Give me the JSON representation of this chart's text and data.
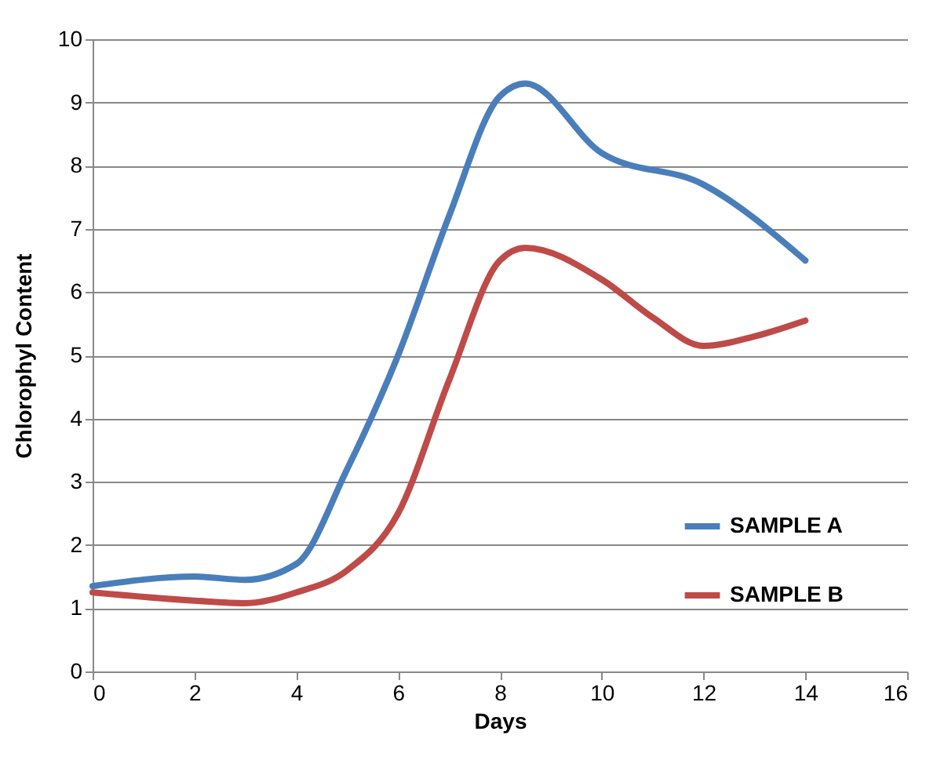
{
  "chart_data": {
    "type": "line",
    "xlabel": "Days",
    "ylabel": "Chlorophyl Content",
    "xlim": [
      0,
      16
    ],
    "xticks": [
      0,
      2,
      4,
      6,
      8,
      10,
      12,
      14,
      16
    ],
    "ylim": [
      0,
      10
    ],
    "yticks": [
      0,
      1,
      2,
      3,
      4,
      5,
      6,
      7,
      8,
      9,
      10
    ],
    "grid": "y",
    "legend": "bottom right",
    "marker": "none",
    "line_style": "solid",
    "series": [
      {
        "name": "SAMPLE A",
        "color": "#4a7ebb",
        "x": [
          0,
          2,
          3,
          4,
          5,
          6,
          7,
          8,
          8.5,
          10,
          12,
          14
        ],
        "values": [
          1.35,
          1.5,
          1.45,
          1.7,
          3.2,
          5.0,
          7.2,
          9.1,
          9.3,
          8.2,
          7.7,
          6.5
        ]
      },
      {
        "name": "SAMPLE B",
        "color": "#be4b48",
        "x": [
          0,
          2,
          3,
          4,
          5,
          6,
          7,
          8,
          8.5,
          10,
          11,
          12,
          13,
          14
        ],
        "values": [
          1.25,
          1.12,
          1.08,
          1.25,
          1.6,
          2.5,
          4.6,
          6.5,
          6.7,
          6.2,
          5.6,
          5.15,
          5.3,
          5.55
        ]
      }
    ]
  }
}
